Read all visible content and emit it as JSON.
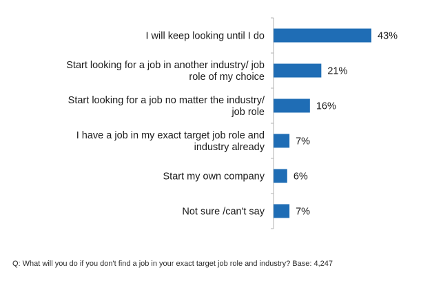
{
  "chart_data": {
    "type": "bar",
    "orientation": "horizontal",
    "categories": [
      [
        "I will keep looking until I do"
      ],
      [
        "Start looking for a job in another industry/ job",
        "role of my choice"
      ],
      [
        "Start looking for a job no matter the industry/",
        "job role"
      ],
      [
        "I have a job in my exact target job role and",
        "industry already"
      ],
      [
        "Start my own company"
      ],
      [
        "Not sure /can't say"
      ]
    ],
    "values": [
      43,
      21,
      16,
      7,
      6,
      7
    ],
    "value_labels": [
      "43%",
      "21%",
      "16%",
      "7%",
      "6%",
      "7%"
    ],
    "xlim": [
      0,
      43
    ],
    "bar_color": "#1f6db5",
    "axis_color": "#b0b0b0",
    "grid": false
  },
  "footnote": "Q: What will you do if you don't find a job in your exact target job role and industry? Base: 4,247"
}
